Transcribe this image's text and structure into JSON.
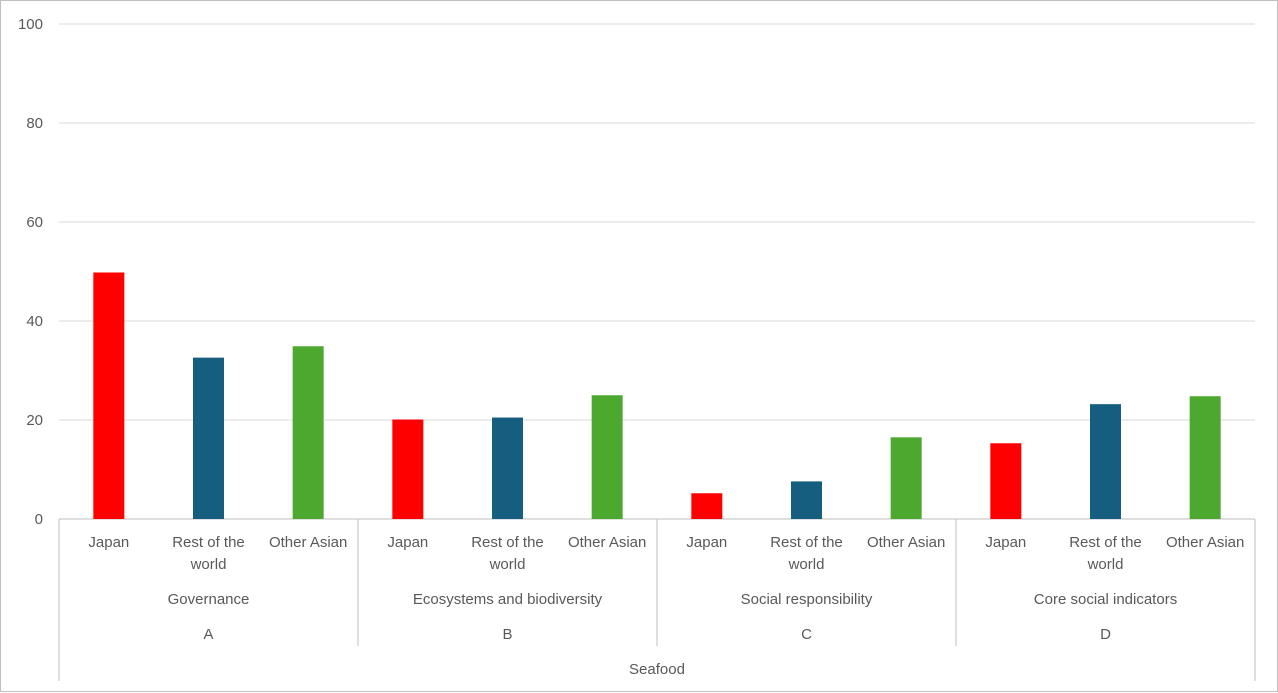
{
  "chart_data": {
    "type": "bar",
    "ylim": [
      0,
      100
    ],
    "yticks": [
      0,
      20,
      40,
      60,
      80,
      100
    ],
    "grid": true,
    "legend": "none",
    "series_colors": {
      "Japan": "#ff0000",
      "Rest of the world": "#165e80",
      "Other Asian": "#4ca82f"
    },
    "top_group": "Seafood",
    "groups": [
      {
        "letter": "A",
        "name": "Governance",
        "bars": [
          {
            "label": "Japan",
            "value": 49.8
          },
          {
            "label": "Rest of the world",
            "value": 32.6
          },
          {
            "label": "Other Asian",
            "value": 34.9
          }
        ]
      },
      {
        "letter": "B",
        "name": "Ecosystems and biodiversity",
        "bars": [
          {
            "label": "Japan",
            "value": 20.1
          },
          {
            "label": "Rest of the world",
            "value": 20.5
          },
          {
            "label": "Other Asian",
            "value": 25.0
          }
        ]
      },
      {
        "letter": "C",
        "name": "Social responsibility",
        "bars": [
          {
            "label": "Japan",
            "value": 5.2
          },
          {
            "label": "Rest of the world",
            "value": 7.6
          },
          {
            "label": "Other Asian",
            "value": 16.5
          }
        ]
      },
      {
        "letter": "D",
        "name": "Core social indicators",
        "bars": [
          {
            "label": "Japan",
            "value": 15.3
          },
          {
            "label": "Rest of the world",
            "value": 23.2
          },
          {
            "label": "Other Asian",
            "value": 24.8
          }
        ]
      }
    ]
  }
}
